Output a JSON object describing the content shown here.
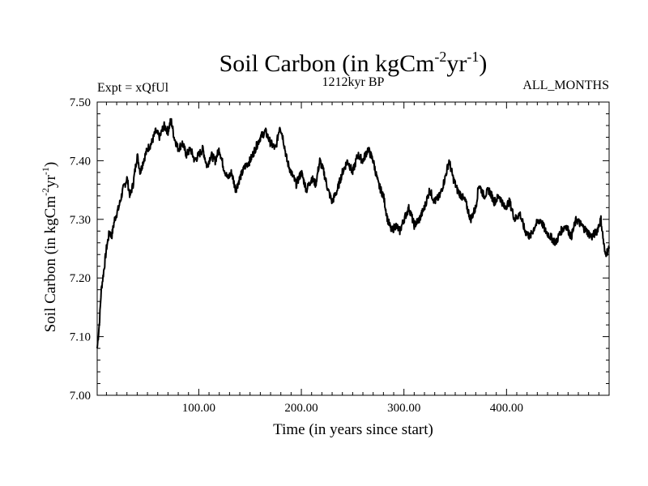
{
  "chart_data": {
    "type": "line",
    "title": "Soil Carbon (in kgCm",
    "title_sup1": "-2",
    "title_mid": "yr",
    "title_sup2": "-1",
    "title_end": ")",
    "left_label": "Expt = xQfUl",
    "center_label": "1212kyr BP",
    "right_label": "ALL_MONTHS",
    "xlabel": "Time (in years since start)",
    "ylabel": "Soil Carbon (in kgCm",
    "ylabel_sup1": "-2",
    "ylabel_mid": "yr",
    "ylabel_sup2": "-1",
    "ylabel_end": ")",
    "xlim": [
      1,
      500
    ],
    "ylim": [
      7.0,
      7.5
    ],
    "xticks": [
      100,
      200,
      300,
      400
    ],
    "xtick_labels": [
      "100.00",
      "200.00",
      "300.00",
      "400.00"
    ],
    "yticks": [
      7.0,
      7.1,
      7.2,
      7.3,
      7.4,
      7.5
    ],
    "ytick_labels": [
      "7.00",
      "7.10",
      "7.20",
      "7.30",
      "7.40",
      "7.50"
    ],
    "line_color": "#000000",
    "series": [
      {
        "name": "Soil Carbon",
        "x": [
          1,
          3,
          5,
          8,
          10,
          13,
          15,
          18,
          22,
          26,
          30,
          33,
          36,
          40,
          43,
          46,
          50,
          54,
          58,
          62,
          66,
          70,
          73,
          76,
          80,
          84,
          88,
          92,
          96,
          100,
          104,
          108,
          112,
          116,
          120,
          124,
          128,
          132,
          136,
          140,
          145,
          150,
          155,
          160,
          165,
          170,
          175,
          179,
          182,
          186,
          190,
          195,
          200,
          205,
          210,
          214,
          218,
          222,
          226,
          230,
          235,
          240,
          245,
          250,
          255,
          260,
          265,
          270,
          275,
          280,
          284,
          288,
          292,
          296,
          300,
          305,
          310,
          315,
          320,
          325,
          330,
          335,
          340,
          344,
          348,
          352,
          356,
          360,
          365,
          370,
          373,
          378,
          383,
          388,
          393,
          398,
          403,
          408,
          413,
          418,
          423,
          428,
          433,
          438,
          443,
          448,
          453,
          458,
          463,
          468,
          473,
          478,
          483,
          488,
          492,
          496,
          500
        ],
        "y": [
          7.08,
          7.12,
          7.18,
          7.22,
          7.25,
          7.28,
          7.27,
          7.3,
          7.32,
          7.35,
          7.37,
          7.34,
          7.36,
          7.41,
          7.38,
          7.4,
          7.42,
          7.43,
          7.45,
          7.44,
          7.46,
          7.45,
          7.47,
          7.44,
          7.42,
          7.43,
          7.41,
          7.42,
          7.4,
          7.41,
          7.42,
          7.39,
          7.41,
          7.4,
          7.42,
          7.39,
          7.37,
          7.38,
          7.35,
          7.37,
          7.39,
          7.4,
          7.42,
          7.44,
          7.45,
          7.43,
          7.42,
          7.46,
          7.44,
          7.4,
          7.38,
          7.36,
          7.38,
          7.35,
          7.37,
          7.36,
          7.4,
          7.38,
          7.35,
          7.33,
          7.35,
          7.38,
          7.4,
          7.38,
          7.41,
          7.4,
          7.42,
          7.4,
          7.36,
          7.34,
          7.3,
          7.28,
          7.29,
          7.28,
          7.3,
          7.32,
          7.29,
          7.3,
          7.32,
          7.35,
          7.33,
          7.34,
          7.37,
          7.4,
          7.37,
          7.35,
          7.34,
          7.33,
          7.3,
          7.32,
          7.36,
          7.34,
          7.35,
          7.33,
          7.34,
          7.32,
          7.33,
          7.3,
          7.31,
          7.28,
          7.27,
          7.29,
          7.3,
          7.28,
          7.27,
          7.26,
          7.28,
          7.29,
          7.27,
          7.3,
          7.29,
          7.28,
          7.27,
          7.28,
          7.3,
          7.24,
          7.25
        ]
      }
    ]
  }
}
